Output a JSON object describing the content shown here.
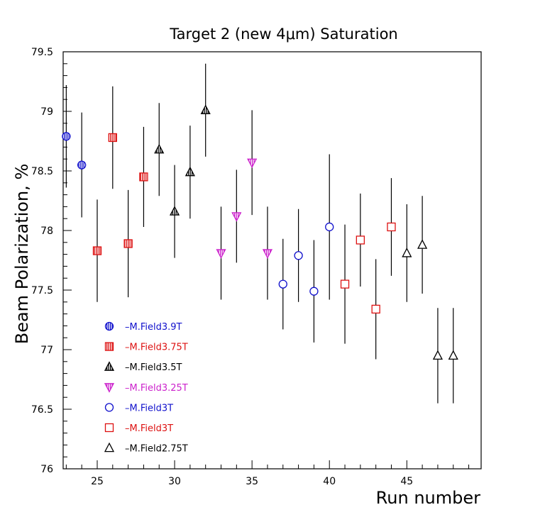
{
  "chart_data": {
    "type": "scatter",
    "title": "Target 2 (new 4μm) Saturation",
    "xlabel": "Run number",
    "ylabel": "Beam Polarization, %",
    "xlim": [
      22.8,
      49.8
    ],
    "ylim": [
      76,
      79.5
    ],
    "xticks": [
      25,
      30,
      35,
      40,
      45
    ],
    "yticks": [
      76,
      76.5,
      77,
      77.5,
      78,
      78.5,
      79,
      79.5
    ],
    "xtick_labels": [
      "25",
      "30",
      "35",
      "40",
      "45"
    ],
    "ytick_labels": [
      "76",
      "76.5",
      "77",
      "77.5",
      "78",
      "78.5",
      "79",
      "79.5"
    ],
    "grid": false,
    "legend_position": "lower-left",
    "series": [
      {
        "name": "–M.Field3.9T",
        "color": "#1010cc",
        "marker": "circle-striped",
        "points": [
          {
            "x": 23,
            "y": 78.79,
            "err": 0.43
          },
          {
            "x": 24,
            "y": 78.55,
            "err": 0.44
          }
        ]
      },
      {
        "name": "–M.Field3.75T",
        "color": "#dd1111",
        "marker": "square-striped",
        "points": [
          {
            "x": 25,
            "y": 77.83,
            "err": 0.43
          },
          {
            "x": 26,
            "y": 78.78,
            "err": 0.43
          },
          {
            "x": 27,
            "y": 77.89,
            "err": 0.45
          },
          {
            "x": 28,
            "y": 78.45,
            "err": 0.42
          }
        ]
      },
      {
        "name": "–M.Field3.5T",
        "color": "#000000",
        "marker": "triangle-up-striped",
        "points": [
          {
            "x": 29,
            "y": 78.68,
            "err": 0.39
          },
          {
            "x": 30,
            "y": 78.16,
            "err": 0.39
          },
          {
            "x": 31,
            "y": 78.49,
            "err": 0.39
          },
          {
            "x": 32,
            "y": 79.01,
            "err": 0.39
          }
        ]
      },
      {
        "name": "–M.Field3.25T",
        "color": "#cc22cc",
        "marker": "triangle-down-striped",
        "points": [
          {
            "x": 33,
            "y": 77.81,
            "err": 0.39
          },
          {
            "x": 34,
            "y": 78.12,
            "err": 0.39
          },
          {
            "x": 35,
            "y": 78.57,
            "err": 0.44
          },
          {
            "x": 36,
            "y": 77.81,
            "err": 0.39
          }
        ]
      },
      {
        "name": "–M.Field3T",
        "color": "#1010cc",
        "marker": "circle-open",
        "points": [
          {
            "x": 37,
            "y": 77.55,
            "err": 0.38
          },
          {
            "x": 38,
            "y": 77.79,
            "err": 0.39
          },
          {
            "x": 39,
            "y": 77.49,
            "err": 0.43
          },
          {
            "x": 40,
            "y": 78.03,
            "err": 0.61
          }
        ]
      },
      {
        "name": "–M.Field3T",
        "color": "#dd1111",
        "marker": "square-open",
        "points": [
          {
            "x": 41,
            "y": 77.55,
            "err": 0.5
          },
          {
            "x": 42,
            "y": 77.92,
            "err": 0.39
          },
          {
            "x": 43,
            "y": 77.34,
            "err": 0.42
          },
          {
            "x": 44,
            "y": 78.03,
            "err": 0.41
          }
        ]
      },
      {
        "name": "–M.Field2.75T",
        "color": "#000000",
        "marker": "triangle-up-open",
        "points": [
          {
            "x": 45,
            "y": 77.81,
            "err": 0.41
          },
          {
            "x": 46,
            "y": 77.88,
            "err": 0.41
          },
          {
            "x": 47,
            "y": 76.95,
            "err": 0.4
          },
          {
            "x": 48,
            "y": 76.95,
            "err": 0.4
          }
        ]
      }
    ]
  }
}
